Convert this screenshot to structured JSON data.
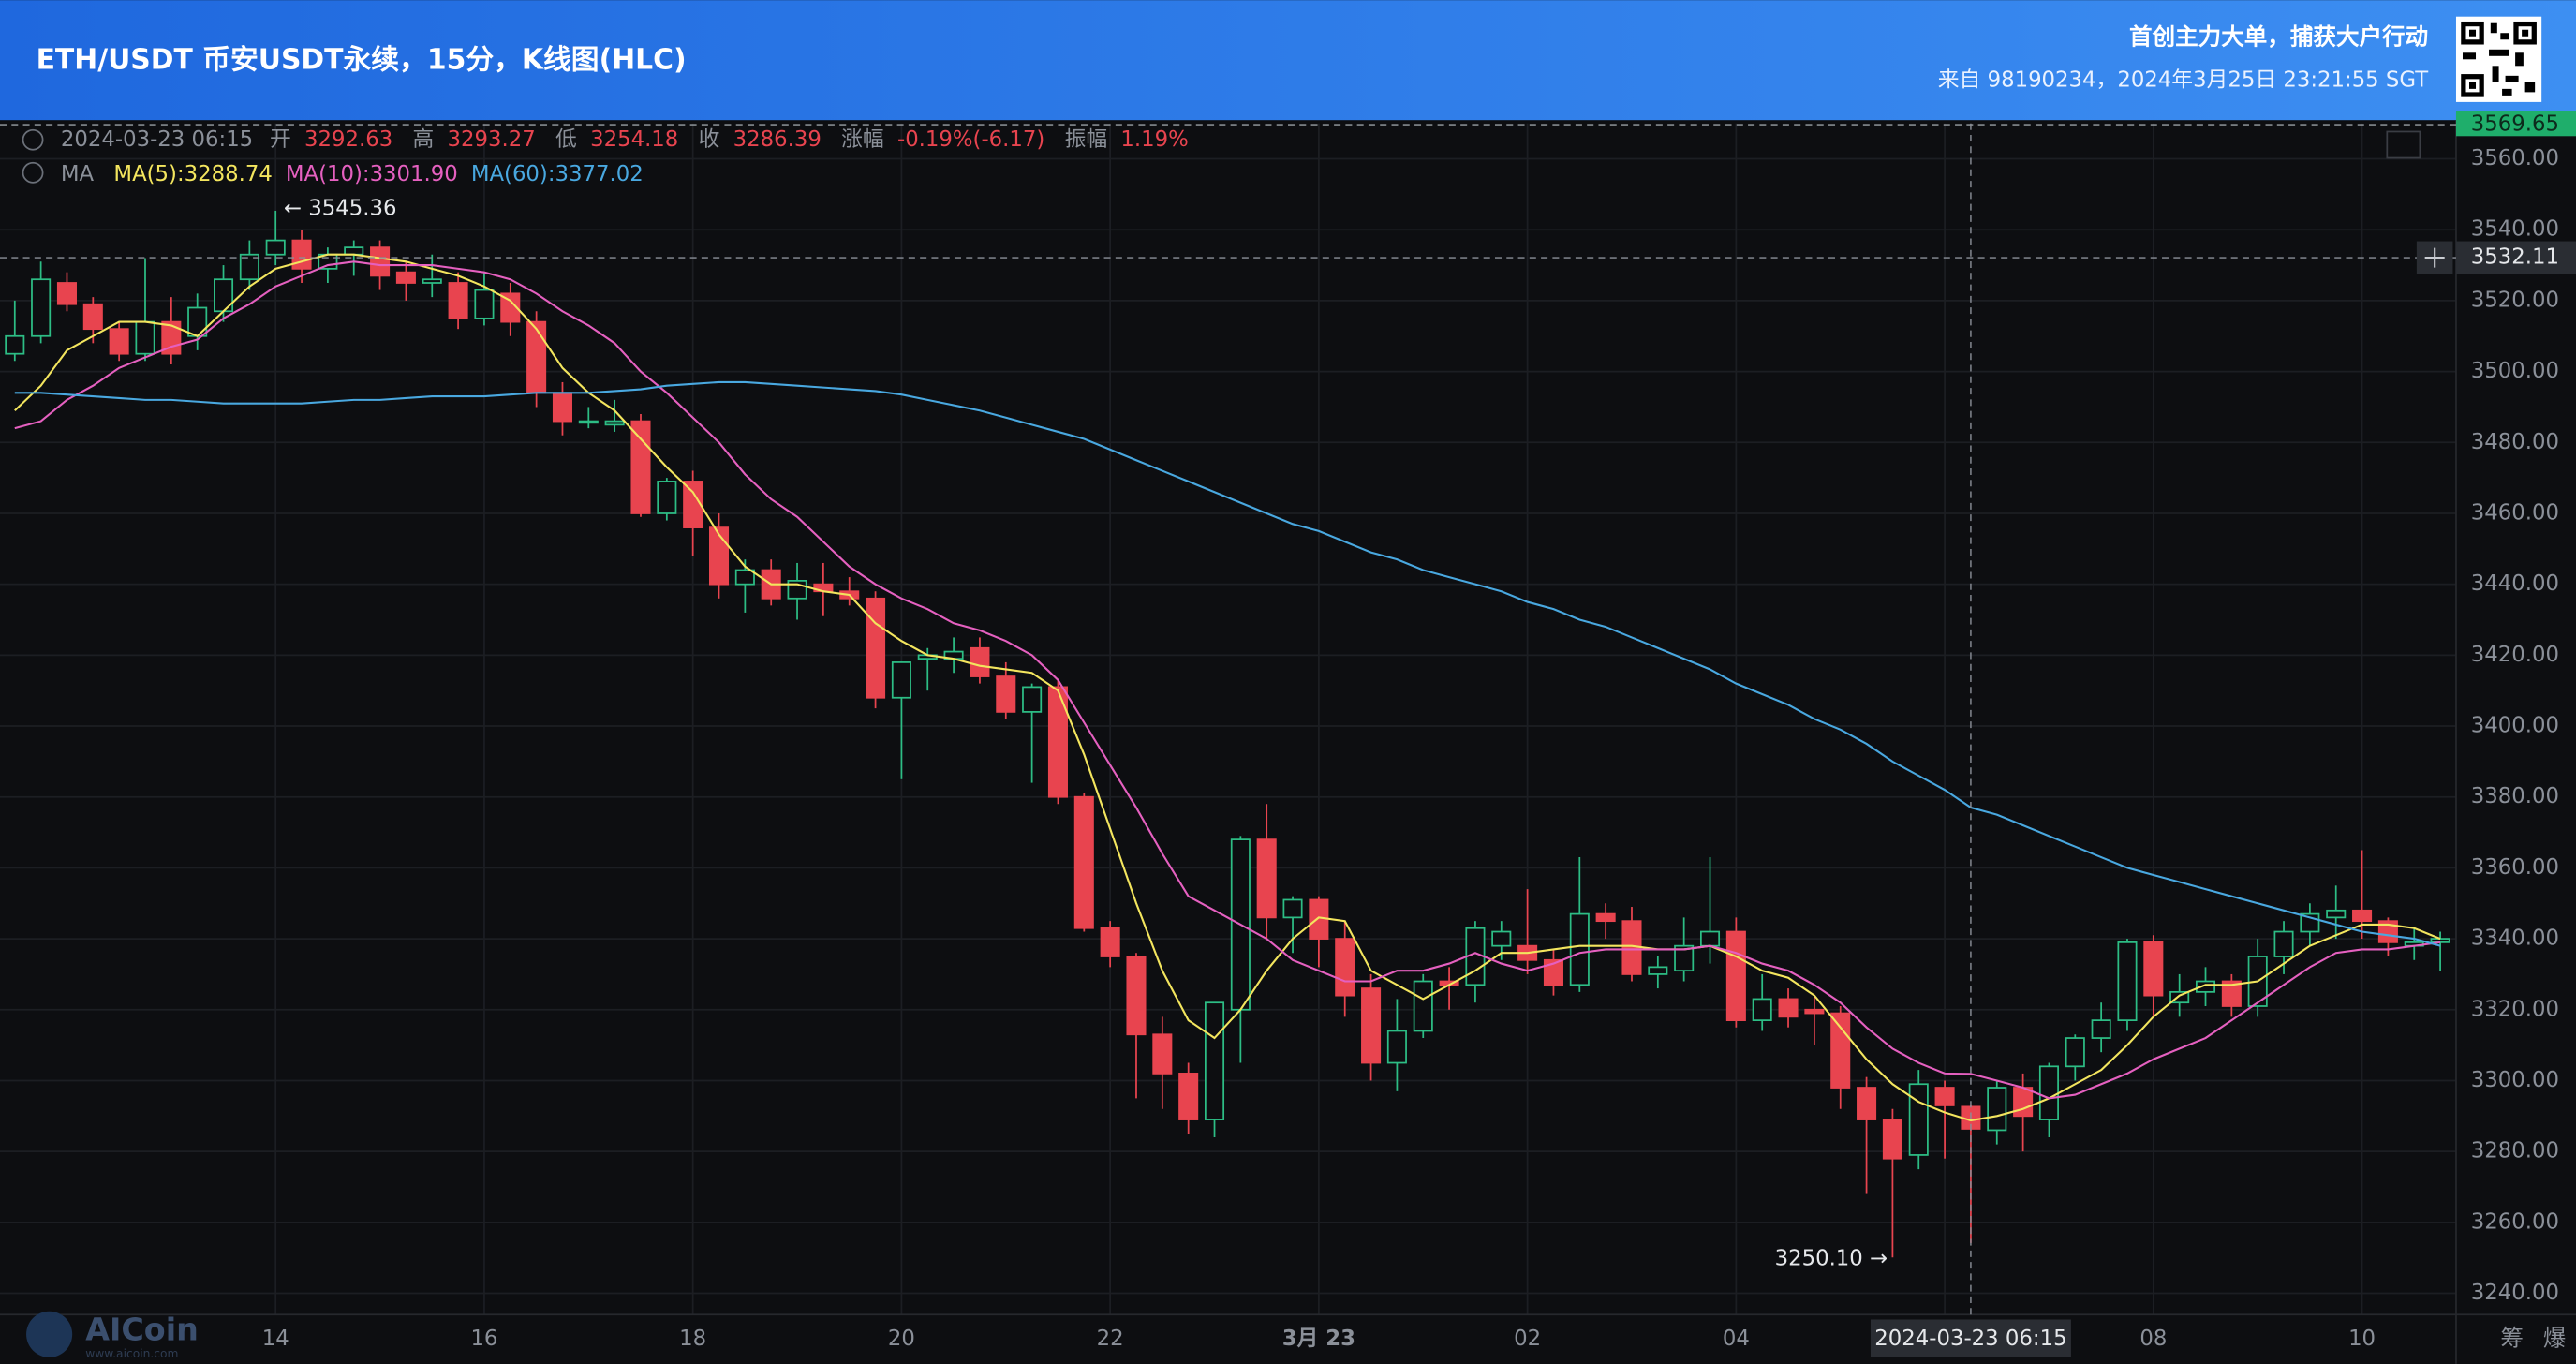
{
  "header": {
    "title": "ETH/USDT 币安USDT永续，15分，K线图(HLC)",
    "slogan": "首创主力大单，捕获大户行动",
    "source": "来自 98190234，2024年3月25日 23:21:55 SGT"
  },
  "info": {
    "time": "2024-03-23 06:15",
    "open_label": "开",
    "high_label": "高",
    "low_label": "低",
    "close_label": "收",
    "change_label": "涨幅",
    "change": "-0.19%(-6.17)",
    "amplitude_label": "振幅",
    "amplitude": "1.19%",
    "ma_label": "MA"
  },
  "toolbar": [
    "筹",
    "爆"
  ],
  "watermark": {
    "brand": "AICoin",
    "site": "www.aicoin.com"
  },
  "chart_data": {
    "type": "candlestick",
    "categories": [
      null,
      null,
      null,
      null,
      null,
      null,
      null,
      null,
      null,
      null,
      "14",
      null,
      null,
      null,
      null,
      null,
      null,
      null,
      "16",
      null,
      null,
      null,
      null,
      null,
      null,
      null,
      "18",
      null,
      null,
      null,
      null,
      null,
      null,
      null,
      "20",
      null,
      null,
      null,
      null,
      null,
      null,
      null,
      "22",
      null,
      null,
      null,
      null,
      null,
      null,
      null,
      "3月 23",
      null,
      null,
      null,
      null,
      null,
      null,
      null,
      "02",
      null,
      null,
      null,
      null,
      null,
      null,
      null,
      "04",
      null,
      null,
      null,
      null,
      null,
      null,
      null,
      null,
      null,
      null,
      null,
      null,
      null,
      null,
      null,
      "08",
      null,
      null,
      null,
      null,
      null,
      null,
      null,
      "10",
      null,
      null,
      null
    ],
    "candles": {
      "up_color": "#2dbd85",
      "down_color": "#e8444f",
      "open": [
        3505,
        3510,
        3525,
        3519,
        3512,
        3505,
        3514,
        3510,
        3517,
        3526,
        3533,
        3537,
        3529,
        3533,
        3535,
        3528,
        3525,
        3525,
        3515,
        3522,
        3514,
        3494,
        3486,
        3485,
        3486,
        3460,
        3469,
        3456,
        3440,
        3444,
        3436,
        3440,
        3438,
        3436,
        3408,
        3419,
        3419,
        3422,
        3414,
        3404,
        3411,
        3380,
        3343,
        3335,
        3313,
        3302,
        3289,
        3320,
        3368,
        3346,
        3351,
        3340,
        3326,
        3305,
        3314,
        3328,
        3327,
        3338,
        3338,
        3334,
        3327,
        3347,
        3345,
        3330,
        3331,
        3338,
        3342,
        3317,
        3323,
        3320,
        3319,
        3298,
        3289,
        3279,
        3298,
        3292.63,
        3286,
        3298,
        3289,
        3304,
        3312,
        3317,
        3339,
        3322,
        3325,
        3328,
        3321,
        3335,
        3342,
        3346,
        3348,
        3345,
        3338,
        3339
      ],
      "high": [
        3520,
        3531,
        3528,
        3521,
        3514,
        3532,
        3521,
        3522,
        3530,
        3537,
        3545.36,
        3540,
        3535,
        3537,
        3537,
        3531,
        3533,
        3528,
        3528,
        3525,
        3517,
        3497,
        3490,
        3492,
        3488,
        3470,
        3472,
        3460,
        3447,
        3447,
        3446,
        3446,
        3442,
        3438,
        3418,
        3422,
        3425,
        3425,
        3418,
        3412,
        3413,
        3381,
        3345,
        3336,
        3318,
        3305,
        3322,
        3369,
        3378,
        3352,
        3352,
        3345,
        3330,
        3323,
        3330,
        3332,
        3345,
        3345,
        3354,
        3337,
        3363,
        3350,
        3349,
        3335,
        3346,
        3363,
        3346,
        3330,
        3326,
        3324,
        3321,
        3301,
        3292,
        3303,
        3300,
        3293.27,
        3300,
        3302,
        3305,
        3313,
        3322,
        3340,
        3341,
        3330,
        3332,
        3330,
        3340,
        3345,
        3350,
        3355,
        3365,
        3346,
        3343,
        3342
      ],
      "low": [
        3503,
        3508,
        3517,
        3508,
        3503,
        3503,
        3502,
        3506,
        3514,
        3523,
        3530,
        3525,
        3525,
        3527,
        3523,
        3520,
        3521,
        3512,
        3513,
        3510,
        3490,
        3482,
        3484,
        3483,
        3459,
        3458,
        3448,
        3436,
        3432,
        3434,
        3430,
        3431,
        3434,
        3405,
        3385,
        3410,
        3415,
        3412,
        3402,
        3384,
        3378,
        3342,
        3332,
        3295,
        3292,
        3285,
        3284,
        3305,
        3340,
        3336,
        3332,
        3318,
        3300,
        3297,
        3312,
        3320,
        3322,
        3334,
        3330,
        3324,
        3325,
        3340,
        3328,
        3326,
        3328,
        3333,
        3315,
        3314,
        3315,
        3310,
        3292,
        3268,
        3250.1,
        3275,
        3278,
        3254.18,
        3282,
        3280,
        3284,
        3300,
        3308,
        3314,
        3318,
        3318,
        3321,
        3318,
        3318,
        3330,
        3338,
        3340,
        3340,
        3335,
        3334,
        3331
      ],
      "close": [
        3510,
        3526,
        3519,
        3512,
        3505,
        3514,
        3505,
        3518,
        3526,
        3533,
        3537,
        3529,
        3533,
        3535,
        3527,
        3525,
        3526,
        3515,
        3523,
        3514,
        3494,
        3486,
        3486,
        3486,
        3460,
        3469,
        3456,
        3440,
        3444,
        3436,
        3441,
        3438,
        3436,
        3408,
        3418,
        3420,
        3421,
        3414,
        3404,
        3411,
        3380,
        3343,
        3335,
        3313,
        3302,
        3289,
        3322,
        3368,
        3346,
        3351,
        3340,
        3324,
        3305,
        3314,
        3328,
        3327,
        3343,
        3342,
        3334,
        3327,
        3347,
        3345,
        3330,
        3332,
        3338,
        3342,
        3317,
        3323,
        3318,
        3319,
        3298,
        3289,
        3278,
        3299,
        3293,
        3286.39,
        3298,
        3290,
        3304,
        3312,
        3317,
        3339,
        3324,
        3325,
        3328,
        3321,
        3335,
        3342,
        3347,
        3348,
        3345,
        3339,
        3339,
        3340
      ]
    },
    "legend_separator": ":",
    "ma_series": [
      {
        "name": "MA(5)",
        "color": "#f3e55e",
        "current": {
          "value": 3288.74,
          "label": "3288.74"
        },
        "values": [
          3489,
          3496,
          3506,
          3510,
          3514,
          3514,
          3513,
          3510,
          3517,
          3524,
          3529,
          3531,
          3533,
          3533,
          3532,
          3531,
          3529,
          3527,
          3524,
          3520,
          3512,
          3501,
          3494,
          3489,
          3481,
          3473,
          3466,
          3454,
          3445,
          3440,
          3440,
          3438,
          3437,
          3429,
          3424,
          3420,
          3419,
          3417,
          3416,
          3415,
          3410,
          3392,
          3371,
          3350,
          3331,
          3317,
          3312,
          3320,
          3331,
          3340,
          3346,
          3345,
          3331,
          3327,
          3323,
          3327,
          3331,
          3336,
          3336,
          3337,
          3338,
          3338,
          3338,
          3337,
          3337,
          3338,
          3335,
          3331,
          3329,
          3324,
          3315,
          3306,
          3299,
          3294,
          3291,
          3288.74,
          3290,
          3292,
          3295,
          3299,
          3303,
          3310,
          3318,
          3324,
          3327,
          3327,
          3328,
          3333,
          3338,
          3341,
          3344,
          3344,
          3343,
          3340
        ]
      },
      {
        "name": "MA(10)",
        "color": "#e560c0",
        "current": {
          "value": 3301.9,
          "label": "3301.90"
        },
        "values": [
          3484,
          3486,
          3492,
          3496,
          3501,
          3504,
          3507,
          3509,
          3515,
          3519,
          3524,
          3527,
          3530,
          3531,
          3530,
          3530,
          3530,
          3529,
          3528,
          3526,
          3522,
          3517,
          3513,
          3508,
          3500,
          3494,
          3487,
          3480,
          3471,
          3464,
          3459,
          3452,
          3445,
          3440,
          3436,
          3433,
          3429,
          3427,
          3424,
          3420,
          3413,
          3401,
          3389,
          3377,
          3364,
          3352,
          3348,
          3344,
          3340,
          3334,
          3331,
          3328,
          3328,
          3331,
          3331,
          3333,
          3336,
          3333,
          3331,
          3333,
          3336,
          3337,
          3337,
          3337,
          3337,
          3338,
          3336,
          3333,
          3331,
          3327,
          3322,
          3315,
          3309,
          3305,
          3302,
          3301.9,
          3300,
          3298,
          3295,
          3296,
          3299,
          3302,
          3306,
          3309,
          3312,
          3317,
          3322,
          3327,
          3332,
          3336,
          3337,
          3337,
          3338,
          3339
        ]
      },
      {
        "name": "MA(60)",
        "color": "#49a8e0",
        "current": {
          "value": 3377.02,
          "label": "3377.02"
        },
        "values": [
          3494,
          3494,
          3493.5,
          3493,
          3492.5,
          3492,
          3492,
          3491.5,
          3491,
          3491,
          3491,
          3491,
          3491.5,
          3492,
          3492,
          3492.5,
          3493,
          3493,
          3493,
          3493.5,
          3494,
          3494,
          3494,
          3494.5,
          3495,
          3496,
          3496.5,
          3497,
          3497,
          3496.5,
          3496,
          3495.5,
          3495,
          3494.5,
          3493.5,
          3492,
          3490.5,
          3489,
          3487,
          3485,
          3483,
          3481,
          3478,
          3475,
          3472,
          3469,
          3466,
          3463,
          3460,
          3457,
          3455,
          3452,
          3449,
          3447,
          3444,
          3442,
          3440,
          3438,
          3435,
          3433,
          3430,
          3428,
          3425,
          3422,
          3419,
          3416,
          3412,
          3409,
          3406,
          3402,
          3399,
          3395,
          3390,
          3386,
          3382,
          3377.02,
          3375,
          3372,
          3369,
          3366,
          3363,
          3360,
          3358,
          3356,
          3354,
          3352,
          3350,
          3348,
          3346,
          3344,
          3342,
          3341,
          3340,
          3338
        ]
      }
    ],
    "extreme_labels": {
      "high": "← 3545.36",
      "low": "3250.10 →"
    },
    "last_price": 3569.65,
    "crosshair_price": 3532.11,
    "crosshair_time": "2024-03-23 06:15",
    "ylim": [
      3234,
      3570
    ],
    "yticks": [
      {
        "value": 3240,
        "label": "3240.00"
      },
      {
        "value": 3260,
        "label": "3260.00"
      },
      {
        "value": 3280,
        "label": "3280.00"
      },
      {
        "value": 3300,
        "label": "3300.00"
      },
      {
        "value": 3320,
        "label": "3320.00"
      },
      {
        "value": 3340,
        "label": "3340.00"
      },
      {
        "value": 3360,
        "label": "3360.00"
      },
      {
        "value": 3380,
        "label": "3380.00"
      },
      {
        "value": 3400,
        "label": "3400.00"
      },
      {
        "value": 3420,
        "label": "3420.00"
      },
      {
        "value": 3440,
        "label": "3440.00"
      },
      {
        "value": 3460,
        "label": "3460.00"
      },
      {
        "value": 3480,
        "label": "3480.00"
      },
      {
        "value": 3500,
        "label": "3500.00"
      },
      {
        "value": 3520,
        "label": "3520.00"
      },
      {
        "value": 3540,
        "label": "3540.00"
      },
      {
        "value": 3560,
        "label": "3560.00"
      }
    ],
    "grid": true
  }
}
